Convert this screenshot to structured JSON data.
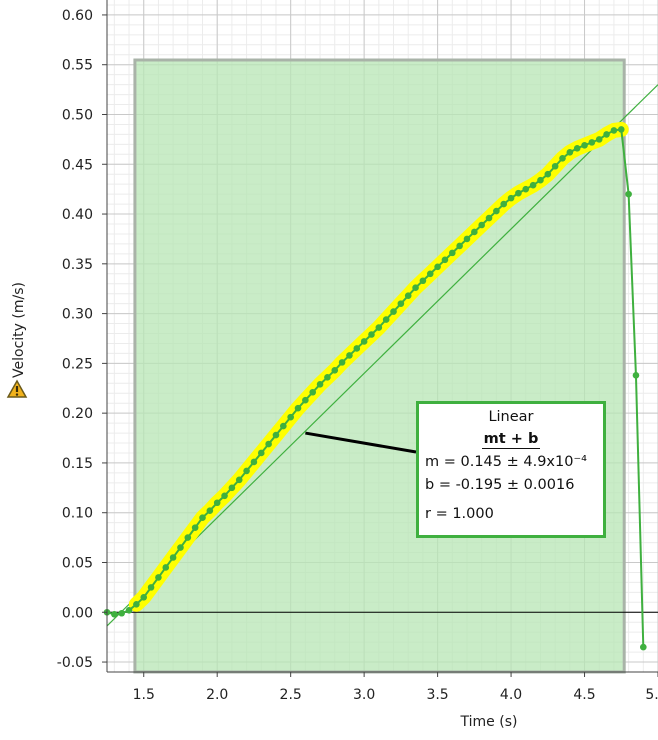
{
  "chart_data": {
    "type": "scatter",
    "xlabel": "Time (s)",
    "ylabel": "Velocity (m/s)",
    "xlim": [
      1.25,
      5.0
    ],
    "ylim": [
      -0.06,
      0.615
    ],
    "x_ticks": [
      1.5,
      2.0,
      2.5,
      3.0,
      3.5,
      4.0,
      4.5,
      5.0
    ],
    "x_tick_labels": [
      "1.5",
      "2.0",
      "2.5",
      "3.0",
      "3.5",
      "4.0",
      "4.5",
      "5."
    ],
    "y_ticks": [
      -0.05,
      0.0,
      0.05,
      0.1,
      0.15,
      0.2,
      0.25,
      0.3,
      0.35,
      0.4,
      0.45,
      0.5,
      0.55,
      0.6
    ],
    "y_tick_labels": [
      "-0.05",
      "0.00",
      "0.05",
      "0.10",
      "0.15",
      "0.20",
      "0.25",
      "0.30",
      "0.35",
      "0.40",
      "0.45",
      "0.50",
      "0.55",
      "0.60"
    ],
    "grid": true,
    "selection_range": [
      1.44,
      4.77
    ],
    "series": [
      {
        "type": "line-with-markers",
        "color": "#3fb03f",
        "highlight_color": "#ffff00",
        "x": [
          1.25,
          1.3,
          1.35,
          1.4,
          1.45,
          1.5,
          1.55,
          1.6,
          1.65,
          1.7,
          1.75,
          1.8,
          1.85,
          1.9,
          1.95,
          2.0,
          2.05,
          2.1,
          2.15,
          2.2,
          2.25,
          2.3,
          2.35,
          2.4,
          2.45,
          2.5,
          2.55,
          2.6,
          2.65,
          2.7,
          2.75,
          2.8,
          2.85,
          2.9,
          2.95,
          3.0,
          3.05,
          3.1,
          3.15,
          3.2,
          3.25,
          3.3,
          3.35,
          3.4,
          3.45,
          3.5,
          3.55,
          3.6,
          3.65,
          3.7,
          3.75,
          3.8,
          3.85,
          3.9,
          3.95,
          4.0,
          4.05,
          4.1,
          4.15,
          4.2,
          4.25,
          4.3,
          4.35,
          4.4,
          4.45,
          4.5,
          4.55,
          4.6,
          4.65,
          4.7,
          4.75,
          4.8,
          4.85,
          4.9
        ],
        "y": [
          0.0,
          -0.002,
          -0.001,
          0.002,
          0.008,
          0.015,
          0.025,
          0.035,
          0.045,
          0.055,
          0.065,
          0.075,
          0.085,
          0.095,
          0.102,
          0.11,
          0.117,
          0.125,
          0.133,
          0.142,
          0.151,
          0.16,
          0.169,
          0.178,
          0.187,
          0.196,
          0.205,
          0.213,
          0.221,
          0.229,
          0.236,
          0.243,
          0.251,
          0.258,
          0.265,
          0.272,
          0.279,
          0.286,
          0.294,
          0.302,
          0.31,
          0.318,
          0.326,
          0.333,
          0.34,
          0.347,
          0.354,
          0.361,
          0.368,
          0.375,
          0.382,
          0.389,
          0.396,
          0.403,
          0.41,
          0.416,
          0.421,
          0.425,
          0.429,
          0.434,
          0.44,
          0.448,
          0.456,
          0.462,
          0.466,
          0.469,
          0.472,
          0.475,
          0.48,
          0.484,
          0.485,
          0.42,
          0.238,
          -0.035
        ]
      }
    ],
    "fit": {
      "title": "Linear",
      "equation": "mt + b",
      "m_text": "m = 0.145  ± 4.9x10⁻⁴",
      "b_text": "b  = -0.195 ± 0.0016",
      "r_text": "r = 1.000",
      "slope": 0.145,
      "intercept": -0.195,
      "line_color": "#3fb03f"
    },
    "icons": {
      "warning": "warning-triangle-icon"
    }
  }
}
